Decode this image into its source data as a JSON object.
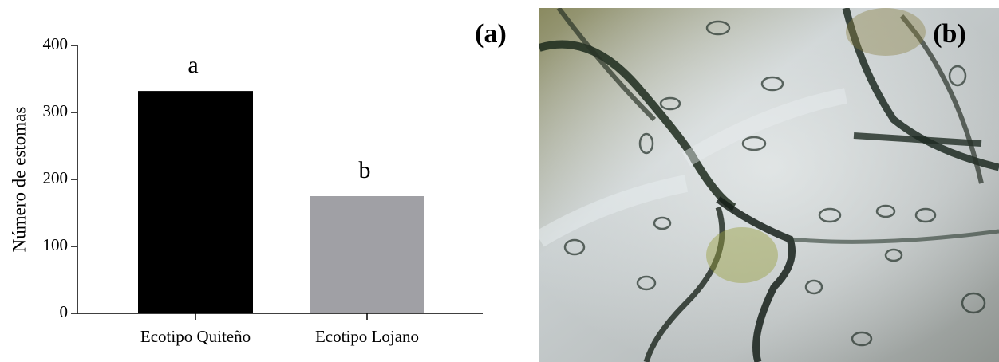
{
  "chart_data": {
    "type": "bar",
    "panel_label": "(a)",
    "y_label": "Número de estomas",
    "categories": [
      "Ecotipo Quiteño",
      "Ecotipo Lojano"
    ],
    "values": [
      332,
      175
    ],
    "colors": [
      "#000000",
      "#a0a0a5"
    ],
    "annotations": [
      "a",
      "b"
    ],
    "ylim": [
      0,
      400
    ],
    "yticks": [
      0,
      100,
      200,
      300,
      400
    ],
    "grid": false
  },
  "image_panel": {
    "label": "(b)"
  }
}
